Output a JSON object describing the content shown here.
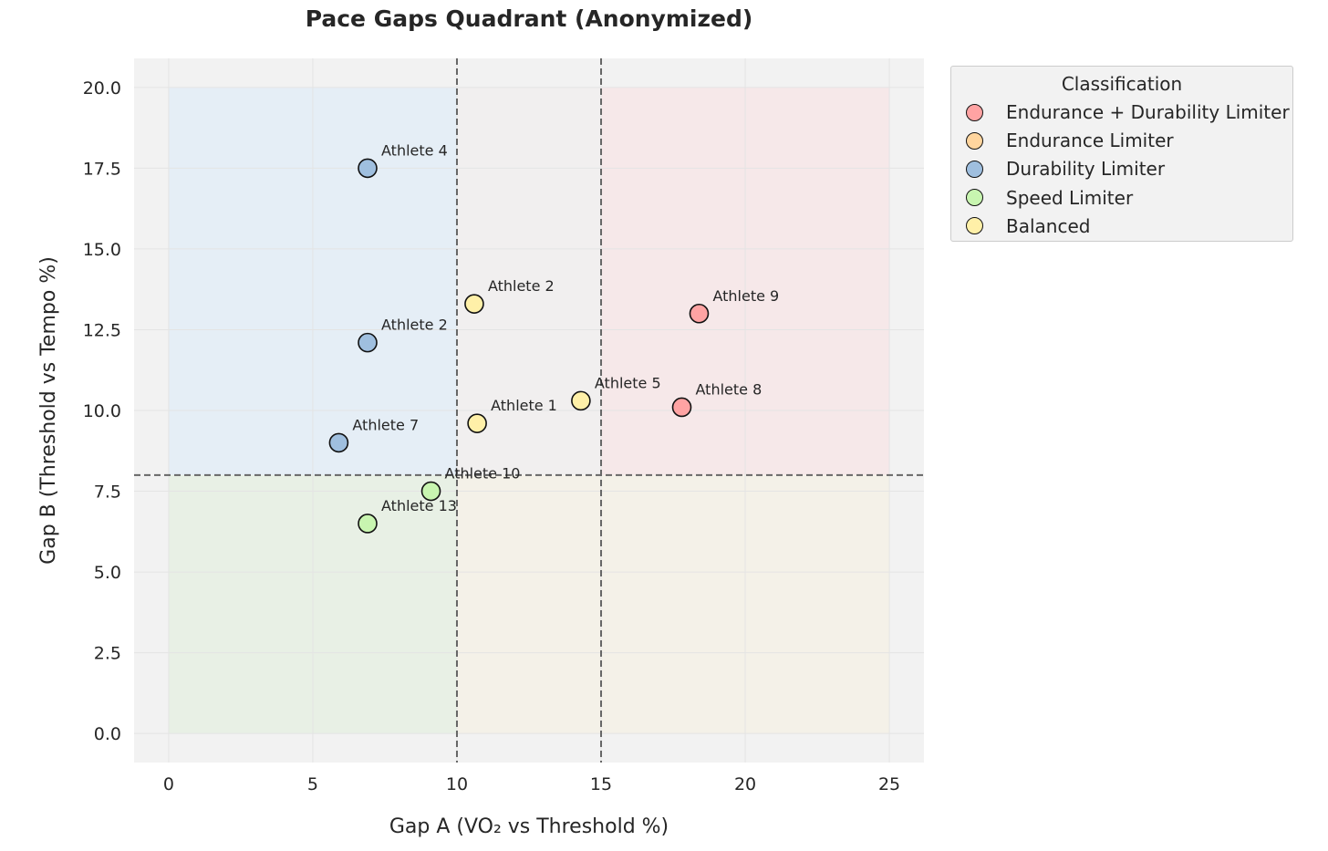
{
  "chart_data": {
    "type": "scatter",
    "title": "Pace Gaps Quadrant (Anonymized)",
    "xlabel": "Gap A (VO₂ vs Threshold %)",
    "ylabel": "Gap B (Threshold vs Tempo %)",
    "xlim": [
      -1.2,
      26.2
    ],
    "ylim": [
      -0.9,
      20.9
    ],
    "xticks": [
      0,
      5,
      10,
      15,
      20,
      25
    ],
    "yticks": [
      0.0,
      2.5,
      5.0,
      7.5,
      10.0,
      12.5,
      15.0,
      17.5,
      20.0
    ],
    "thresholds": {
      "x": [
        10,
        15
      ],
      "y": 8
    },
    "grid": true,
    "legend": {
      "title": "Classification",
      "placement": "outside-right-top",
      "entries": [
        {
          "name": "Endurance + Durability Limiter",
          "color": "#ffa3a3"
        },
        {
          "name": "Endurance Limiter",
          "color": "#ffd59e"
        },
        {
          "name": "Durability Limiter",
          "color": "#9fbfdf"
        },
        {
          "name": "Speed Limiter",
          "color": "#c8f5b0"
        },
        {
          "name": "Balanced",
          "color": "#fff0a8"
        }
      ]
    },
    "quadrant_colors": {
      "top_left": "#e3edf7",
      "top_right": "#f7e6e8",
      "bottom_left": "#e6f0e3",
      "bottom_right": "#f5f1e6",
      "middle": "#f1eeee"
    },
    "series": [
      {
        "name": "Endurance + Durability Limiter",
        "color": "#ffa3a3",
        "points": [
          {
            "label": "Athlete 9",
            "x": 18.4,
            "y": 13.0
          },
          {
            "label": "Athlete 8",
            "x": 17.8,
            "y": 10.1
          }
        ]
      },
      {
        "name": "Endurance Limiter",
        "color": "#ffd59e",
        "points": []
      },
      {
        "name": "Durability Limiter",
        "color": "#9fbfdf",
        "points": [
          {
            "label": "Athlete 4",
            "x": 6.9,
            "y": 17.5
          },
          {
            "label": "Athlete 2",
            "x": 6.9,
            "y": 12.1
          },
          {
            "label": "Athlete 7",
            "x": 5.9,
            "y": 9.0
          }
        ]
      },
      {
        "name": "Speed Limiter",
        "color": "#c8f5b0",
        "points": [
          {
            "label": "Athlete 10",
            "x": 9.1,
            "y": 7.5
          },
          {
            "label": "Athlete 13",
            "x": 6.9,
            "y": 6.5
          }
        ]
      },
      {
        "name": "Balanced",
        "color": "#fff0a8",
        "points": [
          {
            "label": "Athlete 2",
            "x": 10.6,
            "y": 13.3
          },
          {
            "label": "Athlete 1",
            "x": 10.7,
            "y": 9.6
          },
          {
            "label": "Athlete 5",
            "x": 14.3,
            "y": 10.3
          }
        ]
      }
    ]
  }
}
